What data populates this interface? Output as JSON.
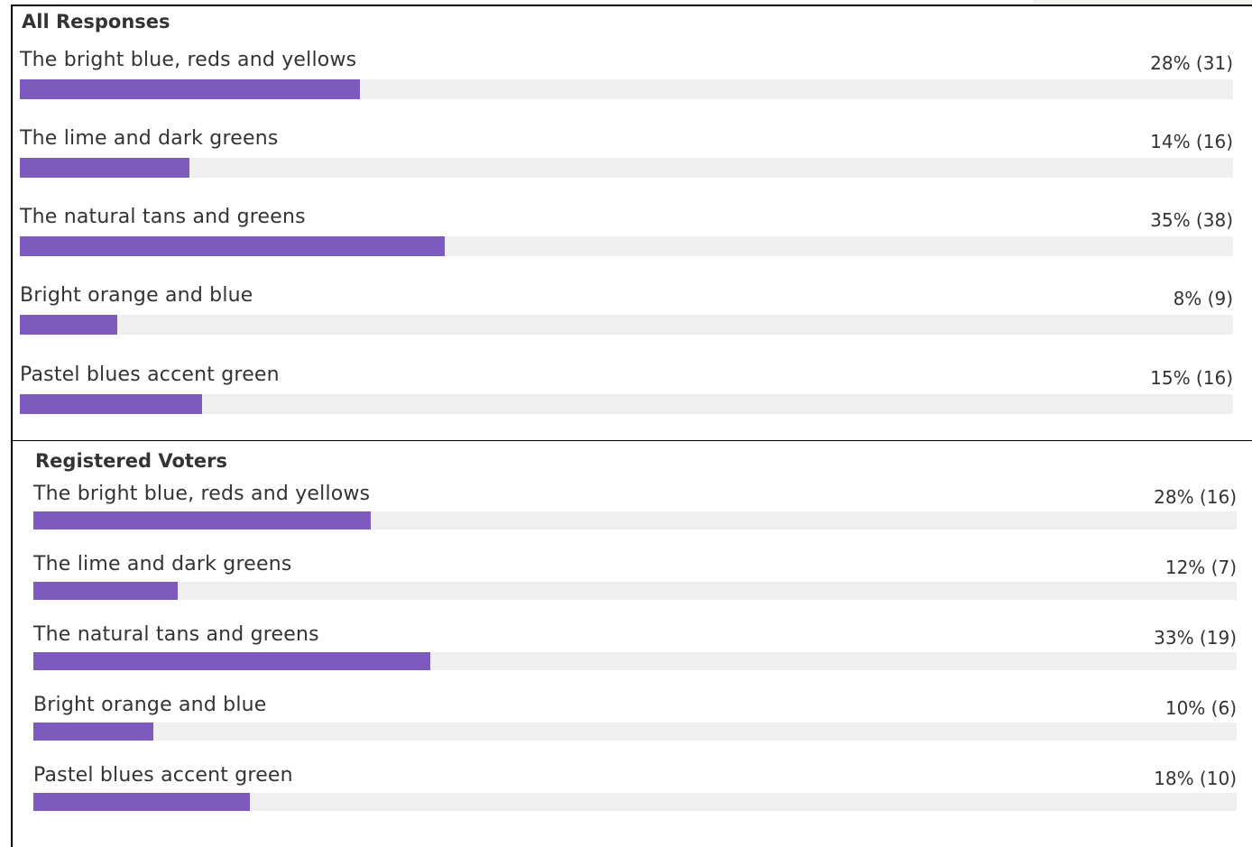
{
  "accent_color": "#7d5bbe",
  "track_color": "#f0f0f0",
  "chart_data": [
    {
      "type": "bar",
      "orientation": "horizontal",
      "title": "All Responses",
      "categories": [
        "The bright blue, reds and yellows",
        "The lime and dark greens",
        "The natural tans and greens",
        "Bright orange and blue",
        "Pastel blues accent green"
      ],
      "percents": [
        28,
        14,
        35,
        8,
        15
      ],
      "counts": [
        31,
        16,
        38,
        9,
        16
      ],
      "value_labels": [
        "28% (31)",
        "14% (16)",
        "35% (38)",
        "8% (9)",
        "15% (16)"
      ],
      "xlim": [
        0,
        100
      ]
    },
    {
      "type": "bar",
      "orientation": "horizontal",
      "title": "Registered Voters",
      "categories": [
        "The bright blue, reds and yellows",
        "The lime and dark greens",
        "The natural tans and greens",
        "Bright orange and blue",
        "Pastel blues accent green"
      ],
      "percents": [
        28,
        12,
        33,
        10,
        18
      ],
      "counts": [
        16,
        7,
        19,
        6,
        10
      ],
      "value_labels": [
        "28% (16)",
        "12% (7)",
        "33% (19)",
        "10% (6)",
        "18% (10)"
      ],
      "xlim": [
        0,
        100
      ]
    }
  ]
}
